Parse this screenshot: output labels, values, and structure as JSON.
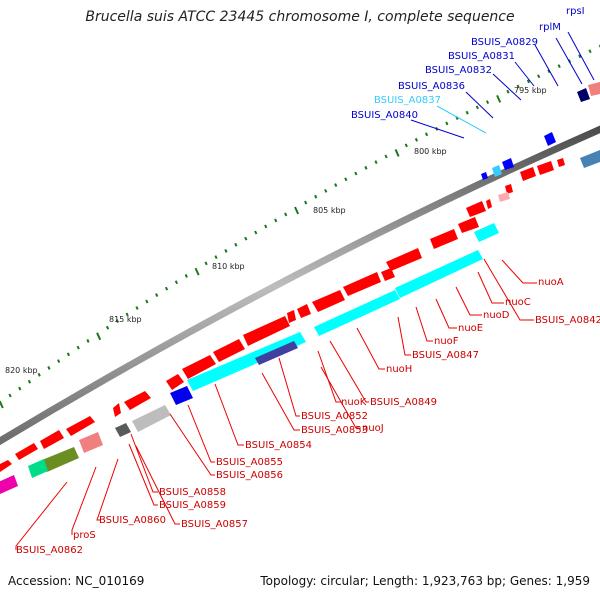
{
  "title": "Brucella suis ATCC 23445 chromosome I, complete sequence",
  "accession": "Accession: NC_010169",
  "summary": "Topology: circular; Length: 1,923,763 bp; Genes: 1,959",
  "scale": {
    "ticks": [
      "795 kbp",
      "800 kbp",
      "805 kbp",
      "810 kbp",
      "815 kbp",
      "820 kbp"
    ]
  },
  "labels": [
    {
      "text": "rpsI",
      "color": "#0000cc"
    },
    {
      "text": "rplM",
      "color": "#0000cc"
    },
    {
      "text": "BSUIS_A0829",
      "color": "#0000cc"
    },
    {
      "text": "BSUIS_A0831",
      "color": "#0000cc"
    },
    {
      "text": "BSUIS_A0832",
      "color": "#0000cc"
    },
    {
      "text": "BSUIS_A0836",
      "color": "#0000cc"
    },
    {
      "text": "BSUIS_A0837",
      "color": "#33ccff"
    },
    {
      "text": "BSUIS_A0840",
      "color": "#0000cc"
    },
    {
      "text": "nuoA",
      "color": "#cc0000"
    },
    {
      "text": "nuoC",
      "color": "#cc0000"
    },
    {
      "text": "BSUIS_A0842",
      "color": "#cc0000"
    },
    {
      "text": "nuoD",
      "color": "#cc0000"
    },
    {
      "text": "nuoE",
      "color": "#cc0000"
    },
    {
      "text": "nuoF",
      "color": "#cc0000"
    },
    {
      "text": "BSUIS_A0847",
      "color": "#cc0000"
    },
    {
      "text": "nuoH",
      "color": "#cc0000"
    },
    {
      "text": "BSUIS_A0849",
      "color": "#cc0000"
    },
    {
      "text": "nuoK",
      "color": "#cc0000"
    },
    {
      "text": "BSUIS_A0852",
      "color": "#cc0000"
    },
    {
      "text": "BSUIS_A0853",
      "color": "#cc0000"
    },
    {
      "text": "nuoJ",
      "color": "#cc0000"
    },
    {
      "text": "BSUIS_A0854",
      "color": "#cc0000"
    },
    {
      "text": "BSUIS_A0855",
      "color": "#cc0000"
    },
    {
      "text": "BSUIS_A0856",
      "color": "#cc0000"
    },
    {
      "text": "BSUIS_A0858",
      "color": "#cc0000"
    },
    {
      "text": "BSUIS_A0859",
      "color": "#cc0000"
    },
    {
      "text": "BSUIS_A0857",
      "color": "#cc0000"
    },
    {
      "text": "BSUIS_A0860",
      "color": "#cc0000"
    },
    {
      "text": "proS",
      "color": "#cc0000"
    },
    {
      "text": "BSUIS_A0862",
      "color": "#cc0000"
    }
  ],
  "colors": {
    "backbone": "#7a7a7a",
    "forward_gene": "#ff0000",
    "reverse_gene": "#0000ff",
    "cog_cyan": "#00ffff",
    "tick_green": "#1a7a1a"
  }
}
